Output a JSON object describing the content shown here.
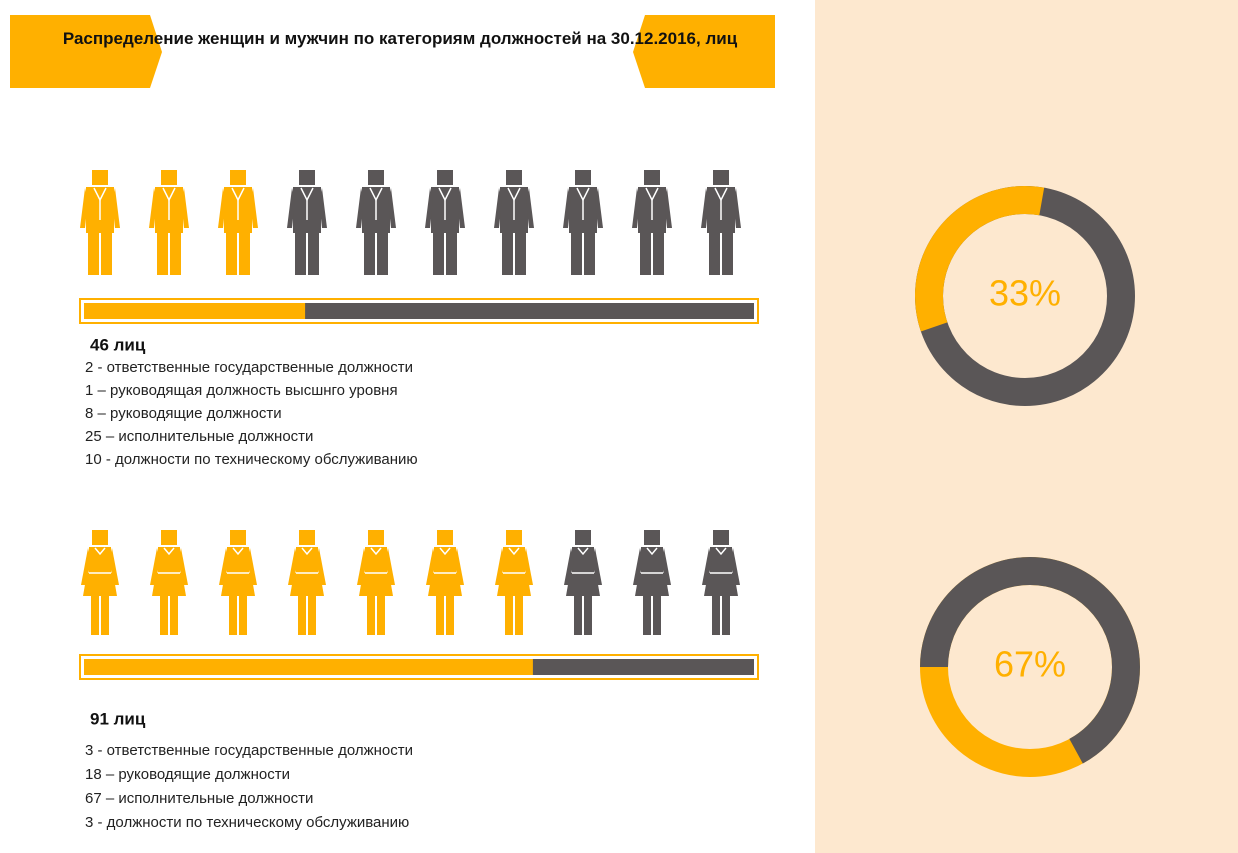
{
  "title": "Распределение женщин и мужчин по категориям должностей на 30.12.2016, лиц",
  "groups": [
    {
      "figure": "man",
      "figures": {
        "highlighted": 3,
        "total": 10
      },
      "total_label": "46 лиц",
      "lines": [
        "2 - ответственные государственные должности",
        "1 –  руководящая должность высшнго уровня",
        "8 – руководящие должности",
        "25 – исполнительные должности",
        "10 - должности по техническому обслуживанию"
      ],
      "percent": 33,
      "percent_label": "33%",
      "donut_color": "#ffb000",
      "donut_base": "#5a5657"
    },
    {
      "figure": "woman",
      "figures": {
        "highlighted": 7,
        "total": 10
      },
      "total_label": "91 лиц",
      "lines": [
        "3 - ответственные государственные должности",
        "18 – руководящие должности",
        "67 – исполнительные должности",
        "3 - должности по техническому обслуживанию"
      ],
      "percent": 67,
      "percent_label": "67%",
      "donut_color": "#5a5657",
      "donut_base": "#ffb000"
    }
  ],
  "highlight_color": "#ffb000",
  "base_color": "#5a5657"
}
